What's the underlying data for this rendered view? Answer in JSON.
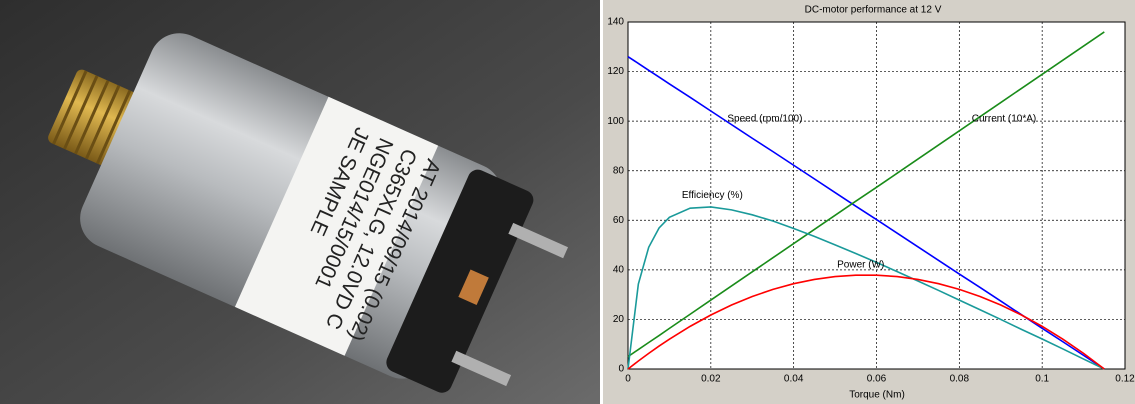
{
  "photo": {
    "label_lines": [
      "JE SAMPLE",
      "NGE014/15/0001",
      "C365XLG, 12.0VD C",
      "AT 2014/09/15 (0.02)"
    ]
  },
  "chart_data": {
    "type": "line",
    "title": "DC-motor performance at 12 V",
    "x_label": "Torque (Nm)",
    "x": [
      0,
      0.0025,
      0.005,
      0.0075,
      0.01,
      0.015,
      0.02,
      0.025,
      0.03,
      0.035,
      0.04,
      0.045,
      0.05,
      0.055,
      0.06,
      0.065,
      0.07,
      0.075,
      0.08,
      0.085,
      0.09,
      0.095,
      0.1,
      0.105,
      0.11,
      0.115
    ],
    "series": [
      {
        "name": "Speed (rpm/100)",
        "color": "#0000ff",
        "values": [
          126,
          123.3,
          120.5,
          117.8,
          115.0,
          109.6,
          104.1,
          98.6,
          93.1,
          87.7,
          82.2,
          76.7,
          71.2,
          65.7,
          60.3,
          54.8,
          49.3,
          43.8,
          38.3,
          32.9,
          27.4,
          21.9,
          16.4,
          11.0,
          5.5,
          0
        ]
      },
      {
        "name": "Current (10*A)",
        "color": "#1a8c1a",
        "values": [
          5,
          7.85,
          10.7,
          13.5,
          16.4,
          22.1,
          27.8,
          33.5,
          39.2,
          44.9,
          50.6,
          56.3,
          62.0,
          67.7,
          73.3,
          79.0,
          84.7,
          90.4,
          96.1,
          101.8,
          107.5,
          113.2,
          118.9,
          124.6,
          130.3,
          136
        ]
      },
      {
        "name": "Efficiency (%)",
        "color": "#1a9a9a",
        "values": [
          0,
          34.3,
          49.1,
          56.9,
          61.2,
          64.9,
          65.4,
          64.2,
          62.2,
          59.7,
          56.7,
          53.5,
          50.1,
          46.6,
          43.0,
          39.3,
          35.5,
          31.7,
          27.8,
          23.9,
          20.0,
          16.0,
          12.1,
          8.1,
          4.0,
          0
        ]
      },
      {
        "name": "Power (W)",
        "color": "#ff0000",
        "values": [
          0,
          3.23,
          6.31,
          9.25,
          12.04,
          17.2,
          21.79,
          25.81,
          29.25,
          32.12,
          34.41,
          36.13,
          37.28,
          37.85,
          37.85,
          37.28,
          36.13,
          34.41,
          32.11,
          29.25,
          25.81,
          21.79,
          17.2,
          12.04,
          6.31,
          0
        ]
      }
    ],
    "xlim": [
      0,
      0.12
    ],
    "xticks": [
      0,
      0.02,
      0.04,
      0.06,
      0.08,
      0.1,
      0.12
    ],
    "ylim": [
      0,
      140
    ],
    "yticks": [
      0,
      20,
      40,
      60,
      80,
      100,
      120,
      140
    ],
    "grid": true
  }
}
